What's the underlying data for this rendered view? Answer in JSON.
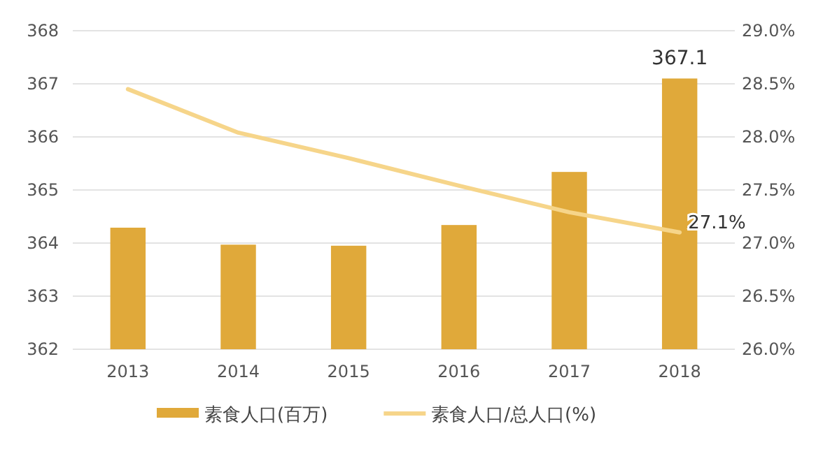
{
  "chart_data": {
    "type": "bar",
    "categories": [
      "2013",
      "2014",
      "2015",
      "2016",
      "2017",
      "2018"
    ],
    "series": [
      {
        "name": "素食人口(百万)",
        "color": "#e0a93a",
        "values": [
          364.29,
          363.97,
          363.95,
          364.34,
          365.34,
          367.1
        ],
        "value_labels": [
          null,
          null,
          null,
          null,
          null,
          "367.1"
        ]
      },
      {
        "name": "素食人口/总人口(%)",
        "type": "line",
        "axis": "y2",
        "color": "#f6d58a",
        "values": [
          28.45,
          28.04,
          27.8,
          27.54,
          27.29,
          27.1
        ],
        "value_labels": [
          null,
          null,
          null,
          null,
          null,
          "27.1%"
        ]
      }
    ],
    "ylim": [
      362,
      368
    ],
    "yticks": [
      362,
      363,
      364,
      365,
      366,
      367,
      368
    ],
    "y2lim": [
      26,
      29
    ],
    "y2ticks": [
      {
        "value": 26,
        "label": "26.0%"
      },
      {
        "value": 26.5,
        "label": "26.5%"
      },
      {
        "value": 27,
        "label": "27.0%"
      },
      {
        "value": 27.5,
        "label": "27.5%"
      },
      {
        "value": 28,
        "label": "28.0%"
      },
      {
        "value": 28.5,
        "label": "28.5%"
      },
      {
        "value": 29,
        "label": "29.0%"
      }
    ],
    "grid": "y",
    "legend": "bottom"
  }
}
